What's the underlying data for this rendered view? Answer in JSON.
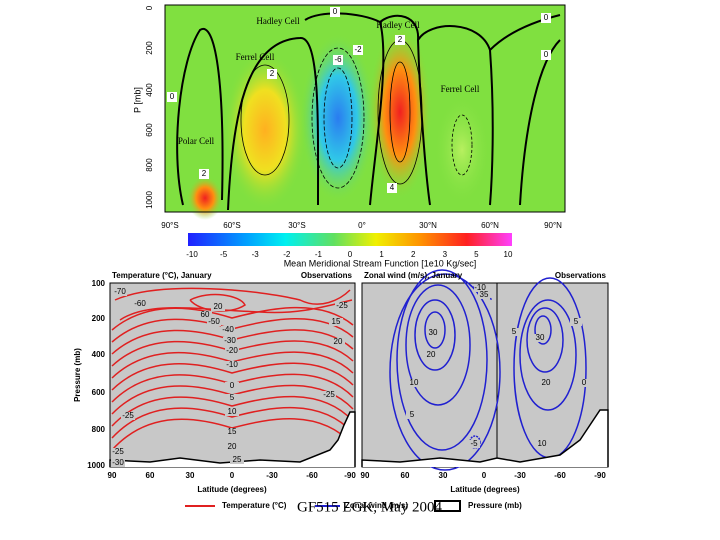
{
  "top_figure": {
    "cell_labels": [
      "Hadley Cell",
      "Hadley Cell",
      "Ferrel Cell",
      "Ferrel Cell",
      "Polar Cell"
    ],
    "contour_labels": [
      "0",
      "2",
      "-2",
      "-6",
      "2",
      "0",
      "2",
      "4",
      "0",
      "0"
    ],
    "y_axis_label": "P [mb]",
    "y_ticks": [
      "0",
      "200",
      "400",
      "600",
      "800",
      "1000"
    ],
    "x_ticks": [
      "90°S",
      "60°S",
      "30°S",
      "0°",
      "30°N",
      "60°N",
      "90°N"
    ],
    "colorbar_ticks": [
      "-10",
      "-5",
      "-3",
      "-2",
      "-1",
      "0",
      "1",
      "2",
      "3",
      "5",
      "10"
    ],
    "colorbar_label": "Mean Meridional Stream Function [1e10 Kg/sec]"
  },
  "temperature_panel": {
    "title": "Temperature (°C), January",
    "source": "Observations",
    "y_axis_label": "Pressure (mb)",
    "y_ticks": [
      "100",
      "200",
      "400",
      "600",
      "800",
      "1000"
    ],
    "x_ticks": [
      "90",
      "60",
      "30",
      "0",
      "-30",
      "-60",
      "-90"
    ],
    "x_axis_label": "Latitude (degrees)",
    "contour_labels": [
      "-70",
      "-60",
      "20",
      "60",
      "-50",
      "-40",
      "-30",
      "-20",
      "-25",
      "-10",
      "15",
      "20",
      "0",
      "5",
      "10",
      "15",
      "20",
      "25",
      "-25",
      "-25",
      "-25",
      "-30"
    ]
  },
  "wind_panel": {
    "title": "Zonal wind (m/s), January",
    "source": "Observations",
    "x_ticks": [
      "90",
      "60",
      "30",
      "0",
      "-30",
      "-60",
      "-90"
    ],
    "x_axis_label": "Latitude (degrees)",
    "contour_labels": [
      "-10",
      "35",
      "30",
      "20",
      "10",
      "5",
      "-5",
      "5",
      "30",
      "5",
      "20",
      "0",
      "10"
    ]
  },
  "legend": [
    "Temperature (°C)",
    "Zonal wind (m/s)",
    "Pressure (mb)"
  ],
  "footer": "GF515 LGK, May 2004"
}
